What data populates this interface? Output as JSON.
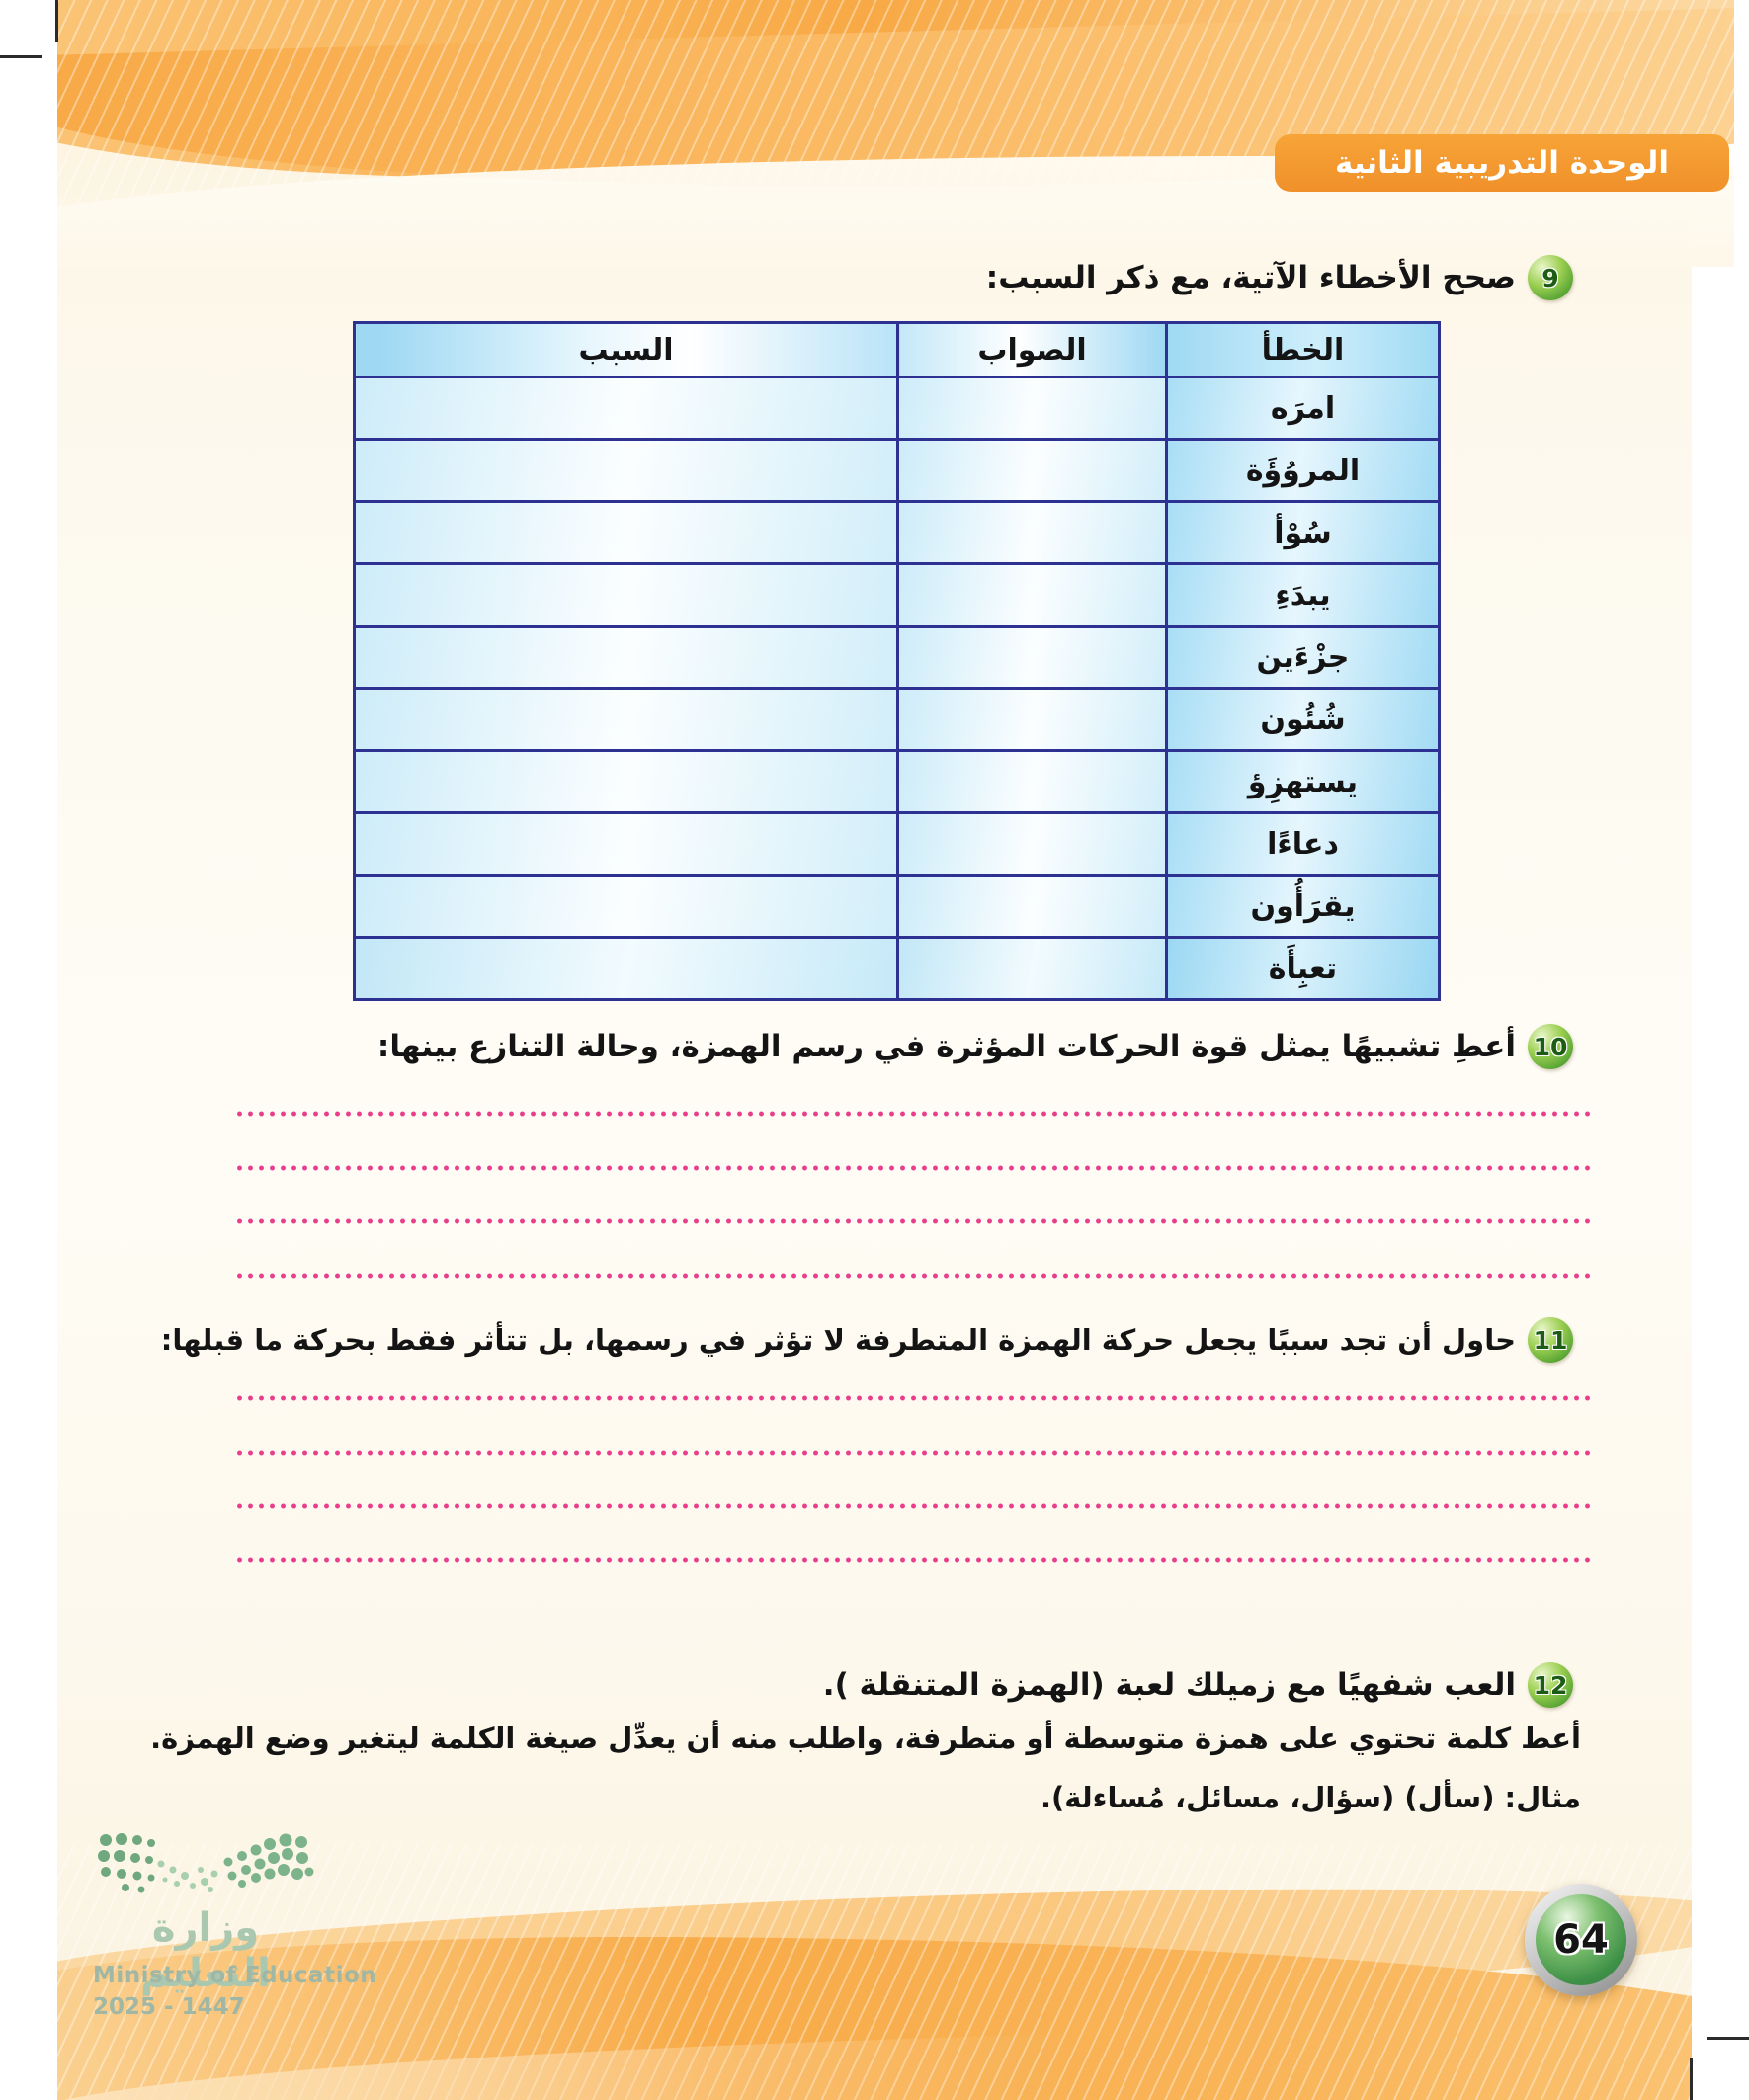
{
  "banner": {
    "label": "الوحدة التدريبية الثانية"
  },
  "q9": {
    "number": "9",
    "prompt": "صحح الأخطاء الآتية، مع ذكر السبب:"
  },
  "table": {
    "headers": [
      "الخطأ",
      "الصواب",
      "السبب"
    ],
    "rows": [
      {
        "error": "امرَه",
        "correct": "",
        "reason": ""
      },
      {
        "error": "المروُؤَة",
        "correct": "",
        "reason": ""
      },
      {
        "error": "سُوْأ",
        "correct": "",
        "reason": ""
      },
      {
        "error": "يبدَءِ",
        "correct": "",
        "reason": ""
      },
      {
        "error": "جزْءَين",
        "correct": "",
        "reason": ""
      },
      {
        "error": "شُئُون",
        "correct": "",
        "reason": ""
      },
      {
        "error": "يستهزِؤ",
        "correct": "",
        "reason": ""
      },
      {
        "error": "دعاءًا",
        "correct": "",
        "reason": ""
      },
      {
        "error": "يقرَأُون",
        "correct": "",
        "reason": ""
      },
      {
        "error": "تعبِأَة",
        "correct": "",
        "reason": ""
      }
    ]
  },
  "q10": {
    "number": "10",
    "prompt": "أعطِ تشبيهًا يمثل قوة الحركات المؤثرة في رسم الهمزة، وحالة التنازع بينها:",
    "answer_lines": 4
  },
  "q11": {
    "number": "11",
    "prompt": "حاول أن تجد سببًا يجعل حركة الهمزة المتطرفة لا تؤثر في رسمها، بل تتأثر فقط بحركة ما قبلها:",
    "answer_lines": 4
  },
  "q12": {
    "number": "12",
    "prompt": "العب شفهيًا مع زميلك لعبة (الهمزة المتنقلة ).",
    "instruction": "أعط كلمة تحتوي على همزة متوسطة أو متطرفة، واطلب منه أن يعدِّل صيغة الكلمة ليتغير وضع الهمزة.",
    "example": "مثال: (سأل) (سؤال، مسائل، مُساءلة)."
  },
  "footer": {
    "ministry_ar": "وزارة التعليم",
    "ministry_en": "Ministry of Education",
    "years": "2025 - 1447",
    "page_number": "64"
  }
}
